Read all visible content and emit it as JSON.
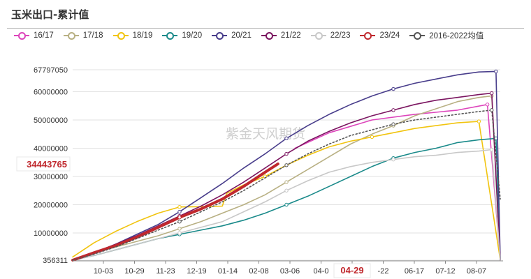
{
  "chart_data": {
    "type": "line",
    "title": "玉米出口-累计值",
    "watermark": "紫金天风期货",
    "x_ticks": [
      "10-03",
      "10-29",
      "11-23",
      "12-19",
      "01-14",
      "02-08",
      "03-06",
      "04-0",
      "04-29",
      "-22",
      "06-17",
      "07-12",
      "08-07"
    ],
    "highlight_x_label": "04-29",
    "y_ticks": [
      "67797050",
      "60000000",
      "50000000",
      "40000000",
      "30000000",
      "20000000",
      "10000000",
      "356311"
    ],
    "ylim": [
      356311,
      67797050
    ],
    "highlight_y_label": "34443765",
    "highlight_y_value": 34443765,
    "series": [
      {
        "name": "16/17",
        "color": "#dd44bb",
        "dashed": false,
        "x": [
          0.52,
          0.6,
          0.7,
          0.8,
          0.9,
          0.97,
          1.0
        ],
        "y": [
          40000000,
          45500000,
          50000000,
          52000000,
          53500000,
          55500000,
          500000
        ]
      },
      {
        "name": "17/18",
        "color": "#b8b083",
        "dashed": false,
        "x": [
          0,
          0.05,
          0.1,
          0.15,
          0.2,
          0.25,
          0.3,
          0.35,
          0.4,
          0.45,
          0.5,
          0.55,
          0.6,
          0.65,
          0.7,
          0.75,
          0.8,
          0.85,
          0.9,
          0.95,
          0.98,
          1.0
        ],
        "y": [
          356311,
          3000000,
          5000000,
          7000000,
          9000000,
          11500000,
          14000000,
          17000000,
          20000000,
          23500000,
          28000000,
          32500000,
          37000000,
          41500000,
          45000000,
          48000000,
          51500000,
          54000000,
          56500000,
          58000000,
          58500000,
          500000
        ]
      },
      {
        "name": "18/19",
        "color": "#f1c40f",
        "dashed": false,
        "x": [
          0,
          0.05,
          0.1,
          0.15,
          0.2,
          0.25,
          0.3,
          0.35,
          0.36,
          0.4,
          0.45,
          0.5,
          0.55,
          0.6,
          0.65,
          0.7,
          0.75,
          0.8,
          0.85,
          0.9,
          0.95,
          1.0
        ],
        "y": [
          1500000,
          6500000,
          10500000,
          14000000,
          17000000,
          19200000,
          19300000,
          19500000,
          24000000,
          27000000,
          30000000,
          34000000,
          37500000,
          40500000,
          42500000,
          44000000,
          45500000,
          47000000,
          48000000,
          49000000,
          49500000,
          500000
        ]
      },
      {
        "name": "19/20",
        "color": "#1a8a8a",
        "dashed": false,
        "x": [
          0,
          0.05,
          0.1,
          0.15,
          0.2,
          0.25,
          0.3,
          0.35,
          0.4,
          0.45,
          0.5,
          0.55,
          0.6,
          0.65,
          0.7,
          0.75,
          0.8,
          0.85,
          0.9,
          0.95,
          0.99,
          1.0
        ],
        "y": [
          356311,
          2000000,
          4000000,
          6000000,
          8000000,
          9500000,
          11000000,
          12500000,
          14500000,
          17000000,
          20000000,
          23000000,
          26500000,
          30000000,
          33500000,
          36500000,
          38500000,
          40000000,
          42000000,
          43000000,
          43500000,
          500000
        ]
      },
      {
        "name": "20/21",
        "color": "#483d8b",
        "dashed": false,
        "x": [
          0,
          0.05,
          0.1,
          0.15,
          0.2,
          0.25,
          0.3,
          0.35,
          0.4,
          0.45,
          0.5,
          0.55,
          0.6,
          0.65,
          0.7,
          0.75,
          0.8,
          0.85,
          0.9,
          0.95,
          0.99,
          1.0
        ],
        "y": [
          356311,
          3000000,
          6000000,
          9500000,
          13000000,
          17500000,
          22500000,
          27500000,
          33000000,
          38000000,
          43500000,
          48000000,
          52000000,
          55500000,
          58500000,
          61000000,
          63000000,
          64500000,
          66000000,
          67000000,
          67200000,
          500000
        ]
      },
      {
        "name": "21/22",
        "color": "#7b1560",
        "dashed": false,
        "x": [
          0,
          0.05,
          0.1,
          0.15,
          0.2,
          0.25,
          0.3,
          0.35,
          0.4,
          0.45,
          0.5,
          0.55,
          0.6,
          0.65,
          0.7,
          0.75,
          0.8,
          0.85,
          0.9,
          0.95,
          0.98,
          1.0
        ],
        "y": [
          356311,
          3000000,
          6000000,
          9000000,
          12500000,
          16000000,
          19500000,
          23500000,
          28000000,
          33000000,
          38000000,
          42500000,
          46000000,
          49000000,
          51500000,
          53500000,
          55500000,
          57000000,
          58000000,
          59000000,
          59500000,
          500000
        ]
      },
      {
        "name": "22/23",
        "color": "#c8c8c8",
        "dashed": false,
        "x": [
          0,
          0.05,
          0.1,
          0.15,
          0.2,
          0.25,
          0.3,
          0.35,
          0.4,
          0.45,
          0.5,
          0.55,
          0.6,
          0.65,
          0.7,
          0.75,
          0.8,
          0.85,
          0.9,
          0.95,
          0.98,
          1.0
        ],
        "y": [
          356311,
          2000000,
          4000000,
          6000000,
          8000000,
          10000000,
          12000000,
          14000000,
          17500000,
          21000000,
          25000000,
          28500000,
          31500000,
          33500000,
          35000000,
          36000000,
          37000000,
          37500000,
          38500000,
          39000000,
          39500000,
          500000
        ]
      },
      {
        "name": "23/24",
        "color": "#c0282d",
        "dashed": false,
        "thick": true,
        "x": [
          0,
          0.05,
          0.1,
          0.15,
          0.2,
          0.25,
          0.3,
          0.35,
          0.4,
          0.45,
          0.48
        ],
        "y": [
          356311,
          3000000,
          5500000,
          8500000,
          12000000,
          15500000,
          18500000,
          22000000,
          26500000,
          31500000,
          34443765
        ]
      },
      {
        "name": "2016-2022均值",
        "color": "#555555",
        "dashed": true,
        "x": [
          0,
          0.05,
          0.1,
          0.15,
          0.2,
          0.25,
          0.3,
          0.35,
          0.4,
          0.45,
          0.5,
          0.55,
          0.6,
          0.65,
          0.7,
          0.75,
          0.8,
          0.85,
          0.9,
          0.95,
          0.98,
          1.0
        ],
        "y": [
          356311,
          2500000,
          5000000,
          8000000,
          11000000,
          14000000,
          17500000,
          21000000,
          25000000,
          29500000,
          34000000,
          38000000,
          41500000,
          44500000,
          46500000,
          48500000,
          50000000,
          51000000,
          52000000,
          53000000,
          53500000,
          22000000
        ]
      }
    ]
  }
}
